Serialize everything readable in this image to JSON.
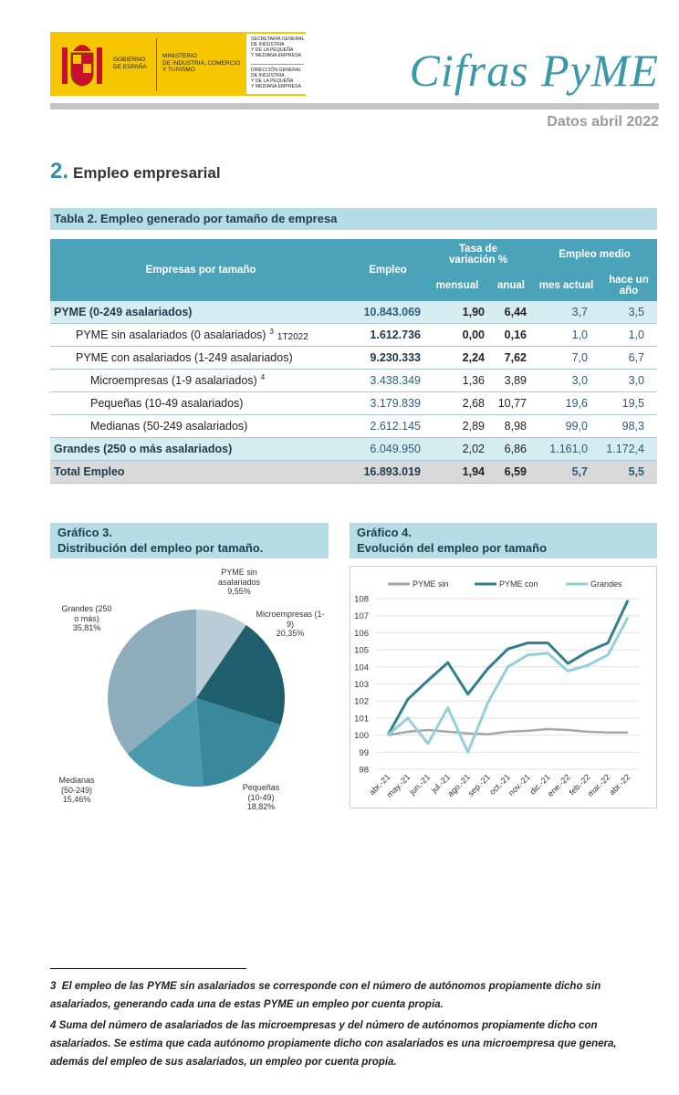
{
  "header": {
    "government": [
      "GOBIERNO",
      "DE ESPAÑA"
    ],
    "ministry": [
      "MINISTERIO",
      "DE INDUSTRIA, COMERCIO",
      "Y TURISMO"
    ],
    "secretariat": [
      "SECRETARÍA GENERAL",
      "DE INDUSTRIA",
      "Y DE LA PEQUEÑA",
      "Y MEDIANA EMPRESA"
    ],
    "directorate": [
      "DIRECCIÓN GENERAL",
      "DE INDUSTRIA",
      "Y DE LA PEQUEÑA",
      "Y MEDIANA EMPRESA"
    ],
    "title": "Cifras PyME",
    "date": "Datos abril 2022"
  },
  "section": {
    "number": "2.",
    "title": "Empleo empresarial"
  },
  "table": {
    "caption": "Tabla 2. Empleo generado por tamaño de empresa",
    "header": {
      "company": "Empresas por tamaño",
      "employment": "Empleo",
      "rate": "Tasa de variación %",
      "average": "Empleo medio",
      "monthly": "mensual",
      "annual": "anual",
      "current": "mes actual",
      "year_ago": "hace un año"
    },
    "rows": [
      {
        "label": "PYME (0-249 asalariados)",
        "cells": [
          "10.843.069",
          "1,90",
          "6,44",
          "3,7",
          "3,5"
        ]
      },
      {
        "label": "PYME sin  asalariados (0 asalariados)",
        "sup": "3",
        "note": "1T2022",
        "cells": [
          "1.612.736",
          "0,00",
          "0,16",
          "1,0",
          "1,0"
        ]
      },
      {
        "label": "PYME con asalariados (1-249 asalariados)",
        "cells": [
          "9.230.333",
          "2,24",
          "7,62",
          "7,0",
          "6,7"
        ]
      },
      {
        "label": "Microempresas (1-9 asalariados)",
        "sup": "4",
        "cells": [
          "3.438.349",
          "1,36",
          "3,89",
          "3,0",
          "3,0"
        ]
      },
      {
        "label": "Pequeñas (10-49 asalariados)",
        "cells": [
          "3.179.839",
          "2,68",
          "10,77",
          "19,6",
          "19,5"
        ]
      },
      {
        "label": "Medianas (50-249 asalariados)",
        "cells": [
          "2.612.145",
          "2,89",
          "8,98",
          "99,0",
          "98,3"
        ]
      },
      {
        "label": "Grandes (250 o más asalariados)",
        "cells": [
          "6.049.950",
          "2,02",
          "6,86",
          "1.161,0",
          "1.172,4"
        ]
      },
      {
        "label": "Total Empleo",
        "cells": [
          "16.893.019",
          "1,94",
          "6,59",
          "5,7",
          "5,5"
        ]
      }
    ]
  },
  "chart_data": [
    {
      "type": "pie",
      "title": [
        "Gráfico 3.",
        "Distribución del empleo por tamaño."
      ],
      "categories": [
        "PYME sin asalariados",
        "Microempresas (1-9)",
        "Pequeñas (10-49)",
        "Medianas (50-249)",
        "Grandes (250 o más)"
      ],
      "values": [
        9.55,
        20.35,
        18.82,
        15.46,
        35.81
      ],
      "value_labels": [
        "9,55%",
        "20,35%",
        "18,82%",
        "15,46%",
        "35,81%"
      ],
      "colors": [
        "#b9cdd6",
        "#1e5e6d",
        "#3a889b",
        "#4c9aae",
        "#8eaebd"
      ]
    },
    {
      "type": "line",
      "title": [
        "Gráfico 4.",
        "Evolución del empleo por tamaño"
      ],
      "categories": [
        "abr.-21",
        "may.-21",
        "jun.-21",
        "jul.-21",
        "ago.-21",
        "sep.-21",
        "oct.-21",
        "nov.-21",
        "dic.-21",
        "ene.-22",
        "feb.-22",
        "mar.-22",
        "abr.-22"
      ],
      "ylim": [
        98,
        108
      ],
      "yticks": [
        98,
        99,
        100,
        101,
        102,
        103,
        104,
        105,
        106,
        107,
        108
      ],
      "grid": true,
      "series": [
        {
          "name": "PYME sin",
          "color": "#a6a6a6",
          "values": [
            100,
            100.2,
            100.3,
            100.2,
            100.1,
            100.05,
            100.2,
            100.25,
            100.35,
            100.3,
            100.2,
            100.15,
            100.15
          ]
        },
        {
          "name": "PYME con",
          "color": "#2f7f8d",
          "values": [
            100,
            102.1,
            103.2,
            104.25,
            102.4,
            103.9,
            105.05,
            105.4,
            105.4,
            104.2,
            104.9,
            105.4,
            107.9
          ]
        },
        {
          "name": "Grandes",
          "color": "#93d0d9",
          "values": [
            100,
            101,
            99.5,
            101.6,
            99,
            101.9,
            104,
            104.7,
            104.8,
            103.75,
            104.1,
            104.7,
            106.9
          ]
        }
      ]
    }
  ],
  "footnotes": [
    {
      "number": "3",
      "text": "El empleo de las PYME sin asalariados se corresponde con el número de autónomos propiamente dicho sin asalariados, generando cada una de estas PYME un empleo por cuenta propia."
    },
    {
      "number": "4",
      "text": "Suma del número de asalariados de las microempresas y del número de autónomos propiamente dicho con asalariados. Se estima que cada autónomo propiamente dicho con asalariados es una microempresa que genera, además del empleo de sus asalariados, un empleo por cuenta propia."
    }
  ]
}
